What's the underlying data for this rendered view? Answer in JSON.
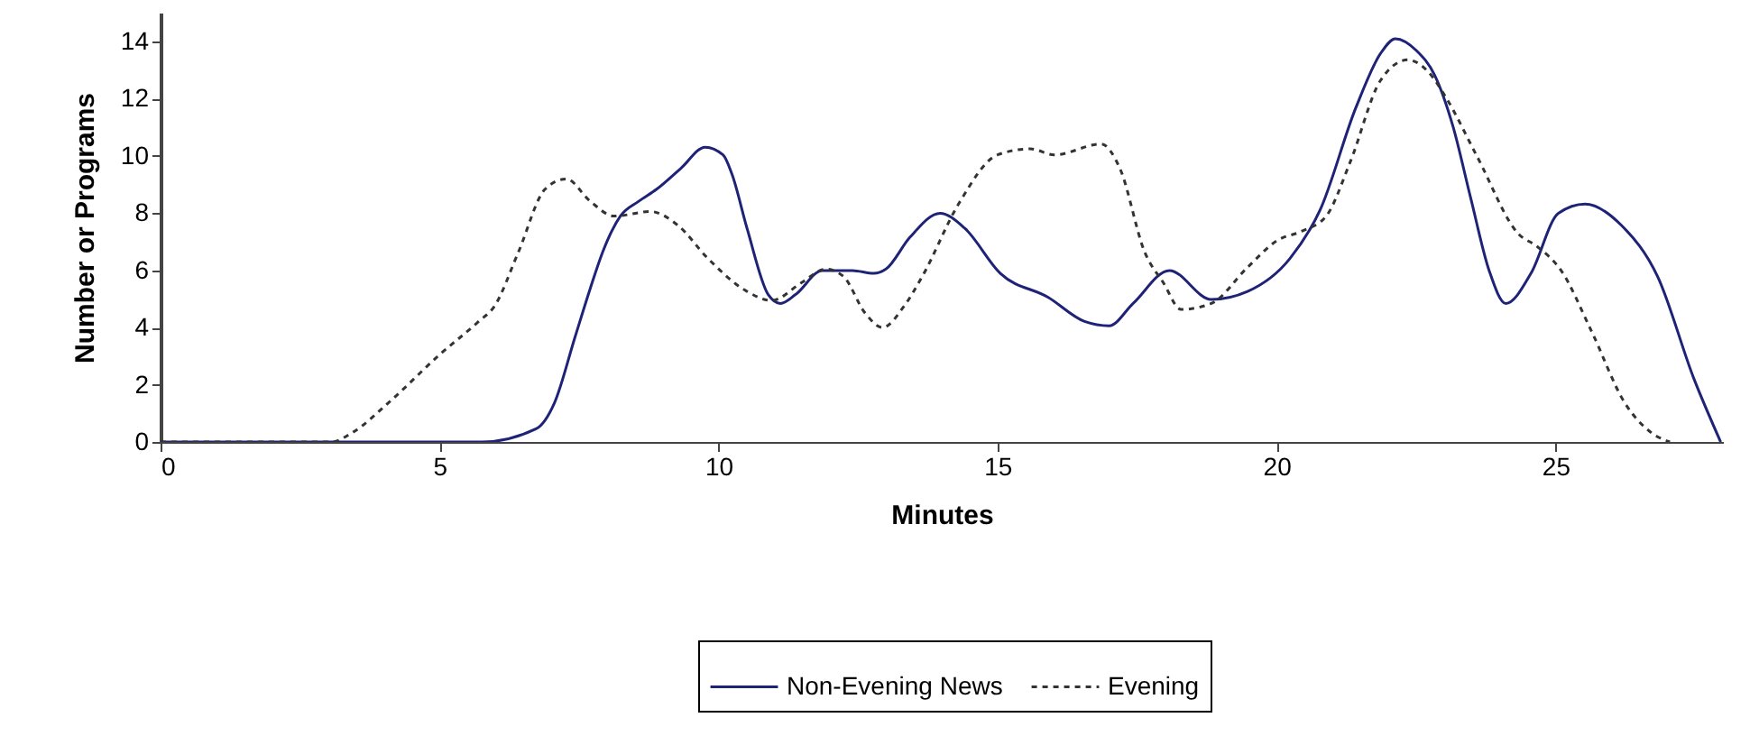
{
  "chart_data": {
    "type": "line",
    "xlabel": "Minutes",
    "ylabel": "Number or Programs",
    "xlim": [
      0,
      28
    ],
    "xticks": [
      0,
      5,
      10,
      15,
      20,
      25
    ],
    "ylim": [
      0,
      15
    ],
    "yticks": [
      0,
      2,
      4,
      6,
      8,
      10,
      12,
      14
    ],
    "grid": false,
    "legend": "bottom",
    "marker": "none",
    "series": [
      {
        "name": "Non-Evening News",
        "color": "#1f2378",
        "line_style": "solid",
        "x": [
          0,
          5.76,
          6.73,
          7.06,
          7.43,
          7.7,
          7.92,
          8.24,
          8.57,
          8.89,
          9.33,
          9.76,
          10.08,
          10.24,
          10.51,
          10.89,
          11.11,
          11.38,
          11.86,
          12.4,
          12.78,
          13.0,
          13.43,
          13.97,
          14.41,
          15.05,
          15.91,
          16.56,
          17.0,
          17.43,
          18.08,
          18.83,
          19.48,
          20.24,
          20.78,
          21.42,
          21.86,
          22.13,
          22.51,
          22.83,
          23.16,
          23.48,
          23.81,
          24.11,
          24.56,
          25.05,
          25.53,
          26.18,
          26.83,
          27.48,
          27.96
        ],
        "values": [
          0,
          0,
          0.46,
          1.37,
          3.68,
          5.36,
          6.62,
          7.89,
          8.41,
          8.83,
          9.57,
          10.3,
          10.03,
          9.36,
          7.47,
          5.15,
          4.84,
          5.15,
          5.99,
          5.99,
          5.89,
          6.04,
          7.15,
          7.99,
          7.47,
          5.89,
          5.05,
          4.21,
          4.06,
          4.84,
          5.99,
          4.98,
          5.26,
          6.41,
          8.1,
          11.67,
          13.56,
          14.09,
          13.67,
          12.83,
          11.04,
          8.52,
          5.99,
          4.84,
          5.89,
          7.99,
          8.31,
          7.57,
          5.78,
          2.21,
          0
        ]
      },
      {
        "name": "Evening",
        "color": "#333333",
        "line_style": "dashed",
        "x": [
          0,
          3.06,
          3.43,
          4.14,
          5.0,
          5.7,
          5.98,
          6.41,
          6.89,
          7.27,
          7.7,
          8.13,
          8.78,
          9.27,
          9.81,
          10.51,
          10.95,
          11.49,
          11.92,
          12.24,
          12.62,
          12.94,
          13.32,
          13.65,
          14.3,
          15.0,
          15.59,
          16.02,
          16.86,
          17.19,
          17.64,
          17.97,
          18.29,
          18.83,
          19.48,
          20.02,
          20.45,
          20.89,
          21.32,
          21.86,
          22.35,
          22.72,
          23.05,
          23.59,
          24.34,
          24.67,
          25.1,
          25.64,
          26.24,
          26.72,
          27.05
        ],
        "values": [
          0,
          0,
          0.32,
          1.47,
          3.05,
          4.21,
          4.73,
          6.62,
          8.83,
          9.19,
          8.41,
          7.89,
          8.05,
          7.57,
          6.41,
          5.26,
          4.94,
          5.57,
          6.04,
          5.78,
          4.52,
          4.0,
          4.73,
          5.78,
          8.31,
          10.03,
          10.24,
          10.03,
          10.41,
          9.57,
          6.62,
          5.57,
          4.63,
          4.84,
          6.1,
          7.05,
          7.36,
          7.89,
          9.78,
          12.62,
          13.35,
          12.93,
          11.99,
          9.99,
          7.26,
          6.83,
          5.99,
          3.89,
          1.37,
          0.32,
          0
        ]
      }
    ]
  }
}
